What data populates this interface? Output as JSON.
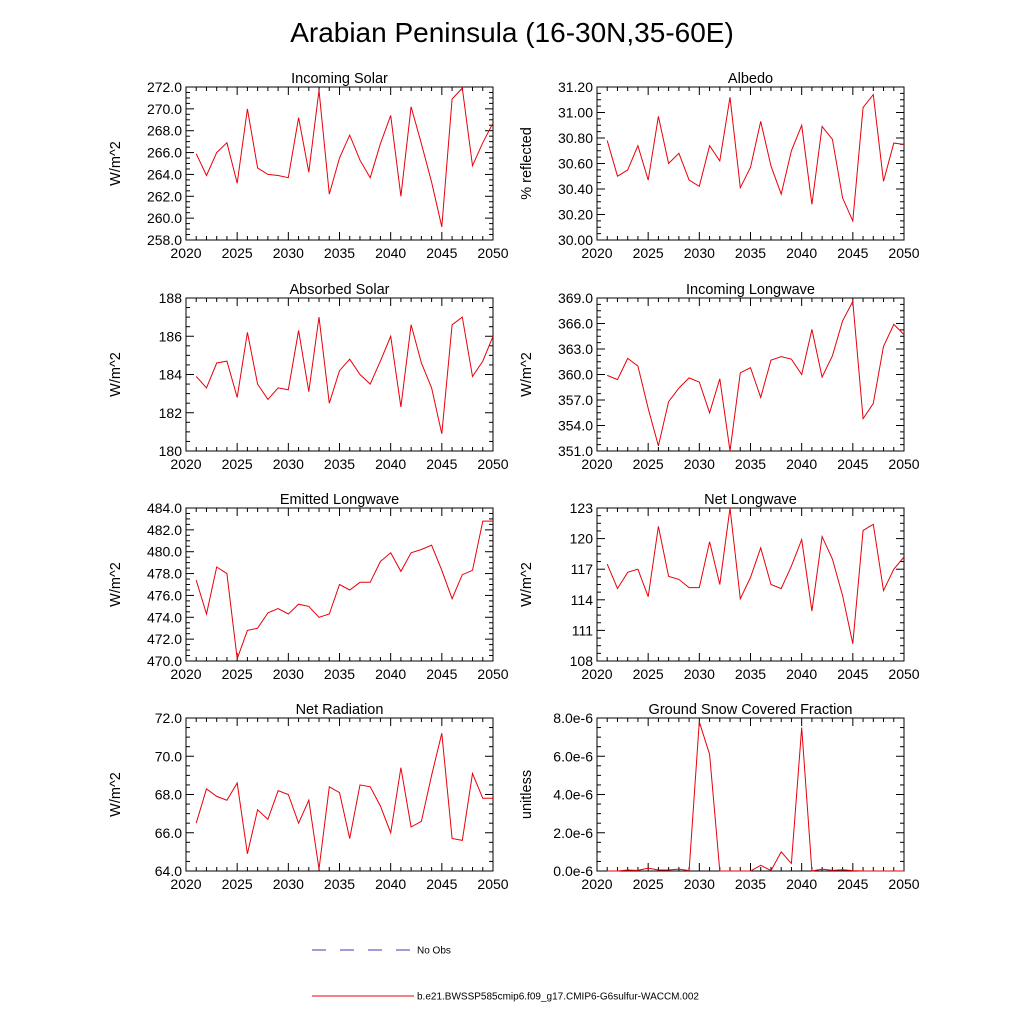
{
  "title": "Arabian Peninsula (16-30N,35-60E)",
  "colors": {
    "model": "#e8000b",
    "obs": "#3b3bb5"
  },
  "legend": {
    "obs_label": "No Obs",
    "model_label": "b.e21.BWSSP585cmip6.f09_g17.CMIP6-G6sulfur-WACCM.002"
  },
  "chart_data": [
    {
      "type": "line",
      "title": "Incoming Solar",
      "ylabel": "W/m^2",
      "xlim": [
        2020,
        2050
      ],
      "ylim": [
        258.0,
        272.0
      ],
      "xticks": [
        2020,
        2025,
        2030,
        2035,
        2040,
        2045,
        2050
      ],
      "xtick_labels": [
        "2020",
        "2025",
        "2030",
        "2035",
        "2040",
        "2045",
        "2050"
      ],
      "yticks": [
        258,
        260,
        262,
        264,
        266,
        268,
        270,
        272
      ],
      "ytick_labels": [
        "258.0",
        "260.0",
        "262.0",
        "264.0",
        "266.0",
        "268.0",
        "270.0",
        "272.0"
      ],
      "x": [
        2021,
        2022,
        2023,
        2024,
        2025,
        2026,
        2027,
        2028,
        2029,
        2030,
        2031,
        2032,
        2033,
        2034,
        2035,
        2036,
        2037,
        2038,
        2039,
        2040,
        2041,
        2042,
        2043,
        2044,
        2045,
        2046,
        2047,
        2048,
        2049,
        2050
      ],
      "series": [
        {
          "values": [
            265.9,
            263.9,
            266.0,
            266.9,
            263.2,
            270.0,
            264.6,
            264.0,
            263.9,
            263.7,
            269.2,
            264.2,
            271.7,
            262.2,
            265.5,
            267.6,
            265.3,
            263.7,
            266.8,
            269.4,
            262.0,
            270.2,
            266.8,
            263.3,
            259.2,
            270.9,
            271.9,
            264.8,
            266.9,
            268.7
          ]
        }
      ]
    },
    {
      "type": "line",
      "title": "Albedo",
      "ylabel": "% reflected",
      "xlim": [
        2020,
        2050
      ],
      "ylim": [
        30.0,
        31.2
      ],
      "xticks": [
        2020,
        2025,
        2030,
        2035,
        2040,
        2045,
        2050
      ],
      "xtick_labels": [
        "2020",
        "2025",
        "2030",
        "2035",
        "2040",
        "2045",
        "2050"
      ],
      "yticks": [
        30.0,
        30.2,
        30.4,
        30.6,
        30.8,
        31.0,
        31.2
      ],
      "ytick_labels": [
        "30.00",
        "30.20",
        "30.40",
        "30.60",
        "30.80",
        "31.00",
        "31.20"
      ],
      "x": [
        2021,
        2022,
        2023,
        2024,
        2025,
        2026,
        2027,
        2028,
        2029,
        2030,
        2031,
        2032,
        2033,
        2034,
        2035,
        2036,
        2037,
        2038,
        2039,
        2040,
        2041,
        2042,
        2043,
        2044,
        2045,
        2046,
        2047,
        2048,
        2049,
        2050
      ],
      "series": [
        {
          "values": [
            30.78,
            30.5,
            30.55,
            30.74,
            30.47,
            30.97,
            30.6,
            30.68,
            30.47,
            30.42,
            30.74,
            30.62,
            31.12,
            30.41,
            30.57,
            30.93,
            30.58,
            30.36,
            30.7,
            30.9,
            30.28,
            30.89,
            30.79,
            30.33,
            30.15,
            31.04,
            31.14,
            30.46,
            30.76,
            30.75
          ]
        }
      ]
    },
    {
      "type": "line",
      "title": "Absorbed Solar",
      "ylabel": "W/m^2",
      "xlim": [
        2020,
        2050
      ],
      "ylim": [
        180,
        188
      ],
      "xticks": [
        2020,
        2025,
        2030,
        2035,
        2040,
        2045,
        2050
      ],
      "xtick_labels": [
        "2020",
        "2025",
        "2030",
        "2035",
        "2040",
        "2045",
        "2050"
      ],
      "yticks": [
        180,
        182,
        184,
        186,
        188
      ],
      "ytick_labels": [
        "180",
        "182",
        "184",
        "186",
        "188"
      ],
      "x": [
        2021,
        2022,
        2023,
        2024,
        2025,
        2026,
        2027,
        2028,
        2029,
        2030,
        2031,
        2032,
        2033,
        2034,
        2035,
        2036,
        2037,
        2038,
        2039,
        2040,
        2041,
        2042,
        2043,
        2044,
        2045,
        2046,
        2047,
        2048,
        2049,
        2050
      ],
      "series": [
        {
          "values": [
            183.9,
            183.3,
            184.6,
            184.7,
            182.8,
            186.2,
            183.5,
            182.7,
            183.3,
            183.2,
            186.3,
            183.1,
            187.0,
            182.5,
            184.2,
            184.8,
            184.0,
            183.5,
            184.7,
            186.0,
            182.3,
            186.6,
            184.6,
            183.3,
            180.9,
            186.6,
            187.0,
            183.9,
            184.7,
            186.0
          ]
        }
      ]
    },
    {
      "type": "line",
      "title": "Incoming Longwave",
      "ylabel": "W/m^2",
      "xlim": [
        2020,
        2050
      ],
      "ylim": [
        351.0,
        369.0
      ],
      "xticks": [
        2020,
        2025,
        2030,
        2035,
        2040,
        2045,
        2050
      ],
      "xtick_labels": [
        "2020",
        "2025",
        "2030",
        "2035",
        "2040",
        "2045",
        "2050"
      ],
      "yticks": [
        351,
        354,
        357,
        360,
        363,
        366,
        369
      ],
      "ytick_labels": [
        "351.0",
        "354.0",
        "357.0",
        "360.0",
        "363.0",
        "366.0",
        "369.0"
      ],
      "x": [
        2021,
        2022,
        2023,
        2024,
        2025,
        2026,
        2027,
        2028,
        2029,
        2030,
        2031,
        2032,
        2033,
        2034,
        2035,
        2036,
        2037,
        2038,
        2039,
        2040,
        2041,
        2042,
        2043,
        2044,
        2045,
        2046,
        2047,
        2048,
        2049,
        2050
      ],
      "series": [
        {
          "values": [
            359.9,
            359.4,
            361.9,
            361.0,
            356.0,
            351.6,
            356.8,
            358.4,
            359.6,
            359.1,
            355.5,
            359.5,
            351.0,
            360.2,
            360.8,
            357.3,
            361.7,
            362.1,
            361.8,
            360.0,
            365.3,
            359.7,
            362.2,
            366.3,
            368.6,
            354.8,
            356.6,
            363.3,
            365.9,
            364.7
          ]
        }
      ]
    },
    {
      "type": "line",
      "title": "Emitted Longwave",
      "ylabel": "W/m^2",
      "xlim": [
        2020,
        2050
      ],
      "ylim": [
        470.0,
        484.0
      ],
      "xticks": [
        2020,
        2025,
        2030,
        2035,
        2040,
        2045,
        2050
      ],
      "xtick_labels": [
        "2020",
        "2025",
        "2030",
        "2035",
        "2040",
        "2045",
        "2050"
      ],
      "yticks": [
        470,
        472,
        474,
        476,
        478,
        480,
        482,
        484
      ],
      "ytick_labels": [
        "470.0",
        "472.0",
        "474.0",
        "476.0",
        "478.0",
        "480.0",
        "482.0",
        "484.0"
      ],
      "x": [
        2021,
        2022,
        2023,
        2024,
        2025,
        2026,
        2027,
        2028,
        2029,
        2030,
        2031,
        2032,
        2033,
        2034,
        2035,
        2036,
        2037,
        2038,
        2039,
        2040,
        2041,
        2042,
        2043,
        2044,
        2045,
        2046,
        2047,
        2048,
        2049,
        2050
      ],
      "series": [
        {
          "values": [
            477.4,
            474.3,
            478.6,
            478.0,
            470.2,
            472.8,
            473.0,
            474.4,
            474.8,
            474.3,
            475.2,
            475.0,
            474.0,
            474.3,
            477.0,
            476.5,
            477.2,
            477.2,
            479.1,
            479.9,
            478.2,
            479.9,
            480.2,
            480.6,
            478.3,
            475.7,
            477.9,
            478.3,
            482.8,
            482.8
          ]
        }
      ]
    },
    {
      "type": "line",
      "title": "Net Longwave",
      "ylabel": "W/m^2",
      "xlim": [
        2020,
        2050
      ],
      "ylim": [
        108,
        123
      ],
      "xticks": [
        2020,
        2025,
        2030,
        2035,
        2040,
        2045,
        2050
      ],
      "xtick_labels": [
        "2020",
        "2025",
        "2030",
        "2035",
        "2040",
        "2045",
        "2050"
      ],
      "yticks": [
        108,
        111,
        114,
        117,
        120,
        123
      ],
      "ytick_labels": [
        "108",
        "111",
        "114",
        "117",
        "120",
        "123"
      ],
      "x": [
        2021,
        2022,
        2023,
        2024,
        2025,
        2026,
        2027,
        2028,
        2029,
        2030,
        2031,
        2032,
        2033,
        2034,
        2035,
        2036,
        2037,
        2038,
        2039,
        2040,
        2041,
        2042,
        2043,
        2044,
        2045,
        2046,
        2047,
        2048,
        2049,
        2050
      ],
      "series": [
        {
          "values": [
            117.5,
            115.1,
            116.7,
            117.0,
            114.3,
            121.2,
            116.3,
            116.0,
            115.2,
            115.2,
            119.7,
            115.5,
            123.0,
            114.1,
            116.2,
            119.1,
            115.5,
            115.1,
            117.3,
            119.9,
            112.9,
            120.2,
            118.0,
            114.4,
            109.7,
            120.8,
            121.4,
            114.9,
            117.0,
            118.2
          ]
        }
      ]
    },
    {
      "type": "line",
      "title": "Net Radiation",
      "ylabel": "W/m^2",
      "xlim": [
        2020,
        2050
      ],
      "ylim": [
        64.0,
        72.0
      ],
      "xticks": [
        2020,
        2025,
        2030,
        2035,
        2040,
        2045,
        2050
      ],
      "xtick_labels": [
        "2020",
        "2025",
        "2030",
        "2035",
        "2040",
        "2045",
        "2050"
      ],
      "yticks": [
        64,
        66,
        68,
        70,
        72
      ],
      "ytick_labels": [
        "64.0",
        "66.0",
        "68.0",
        "70.0",
        "72.0"
      ],
      "x": [
        2021,
        2022,
        2023,
        2024,
        2025,
        2026,
        2027,
        2028,
        2029,
        2030,
        2031,
        2032,
        2033,
        2034,
        2035,
        2036,
        2037,
        2038,
        2039,
        2040,
        2041,
        2042,
        2043,
        2044,
        2045,
        2046,
        2047,
        2048,
        2049,
        2050
      ],
      "series": [
        {
          "values": [
            66.5,
            68.3,
            67.9,
            67.7,
            68.6,
            64.9,
            67.2,
            66.7,
            68.2,
            68.0,
            66.5,
            67.7,
            64.1,
            68.4,
            68.1,
            65.7,
            68.5,
            68.4,
            67.4,
            66.0,
            69.4,
            66.3,
            66.6,
            69.0,
            71.2,
            65.7,
            65.6,
            69.1,
            67.8,
            67.8
          ]
        }
      ]
    },
    {
      "type": "line",
      "title": "Ground Snow Covered Fraction",
      "ylabel": "unitless",
      "xlim": [
        2020,
        2050
      ],
      "ylim": [
        0,
        8e-06
      ],
      "xticks": [
        2020,
        2025,
        2030,
        2035,
        2040,
        2045,
        2050
      ],
      "xtick_labels": [
        "2020",
        "2025",
        "2030",
        "2035",
        "2040",
        "2045",
        "2050"
      ],
      "yticks": [
        0,
        2e-06,
        4e-06,
        6e-06,
        8e-06
      ],
      "ytick_labels": [
        "0.0e-6",
        "2.0e-6",
        "4.0e-6",
        "6.0e-6",
        "8.0e-6"
      ],
      "x": [
        2021,
        2022,
        2023,
        2024,
        2025,
        2026,
        2027,
        2028,
        2029,
        2030,
        2031,
        2032,
        2033,
        2034,
        2035,
        2036,
        2037,
        2038,
        2039,
        2040,
        2041,
        2042,
        2043,
        2044,
        2045,
        2046,
        2047,
        2048,
        2049,
        2050
      ],
      "series": [
        {
          "values": [
            0,
            0,
            5e-08,
            3e-08,
            1.5e-07,
            5e-08,
            5e-08,
            1e-07,
            2e-08,
            7.8e-06,
            6.1e-06,
            0,
            0,
            0,
            0,
            3e-07,
            2e-08,
            1e-06,
            4e-07,
            7.5e-06,
            0,
            1e-07,
            3e-08,
            7e-08,
            2e-08,
            0,
            0,
            0,
            0,
            0
          ]
        }
      ]
    }
  ]
}
